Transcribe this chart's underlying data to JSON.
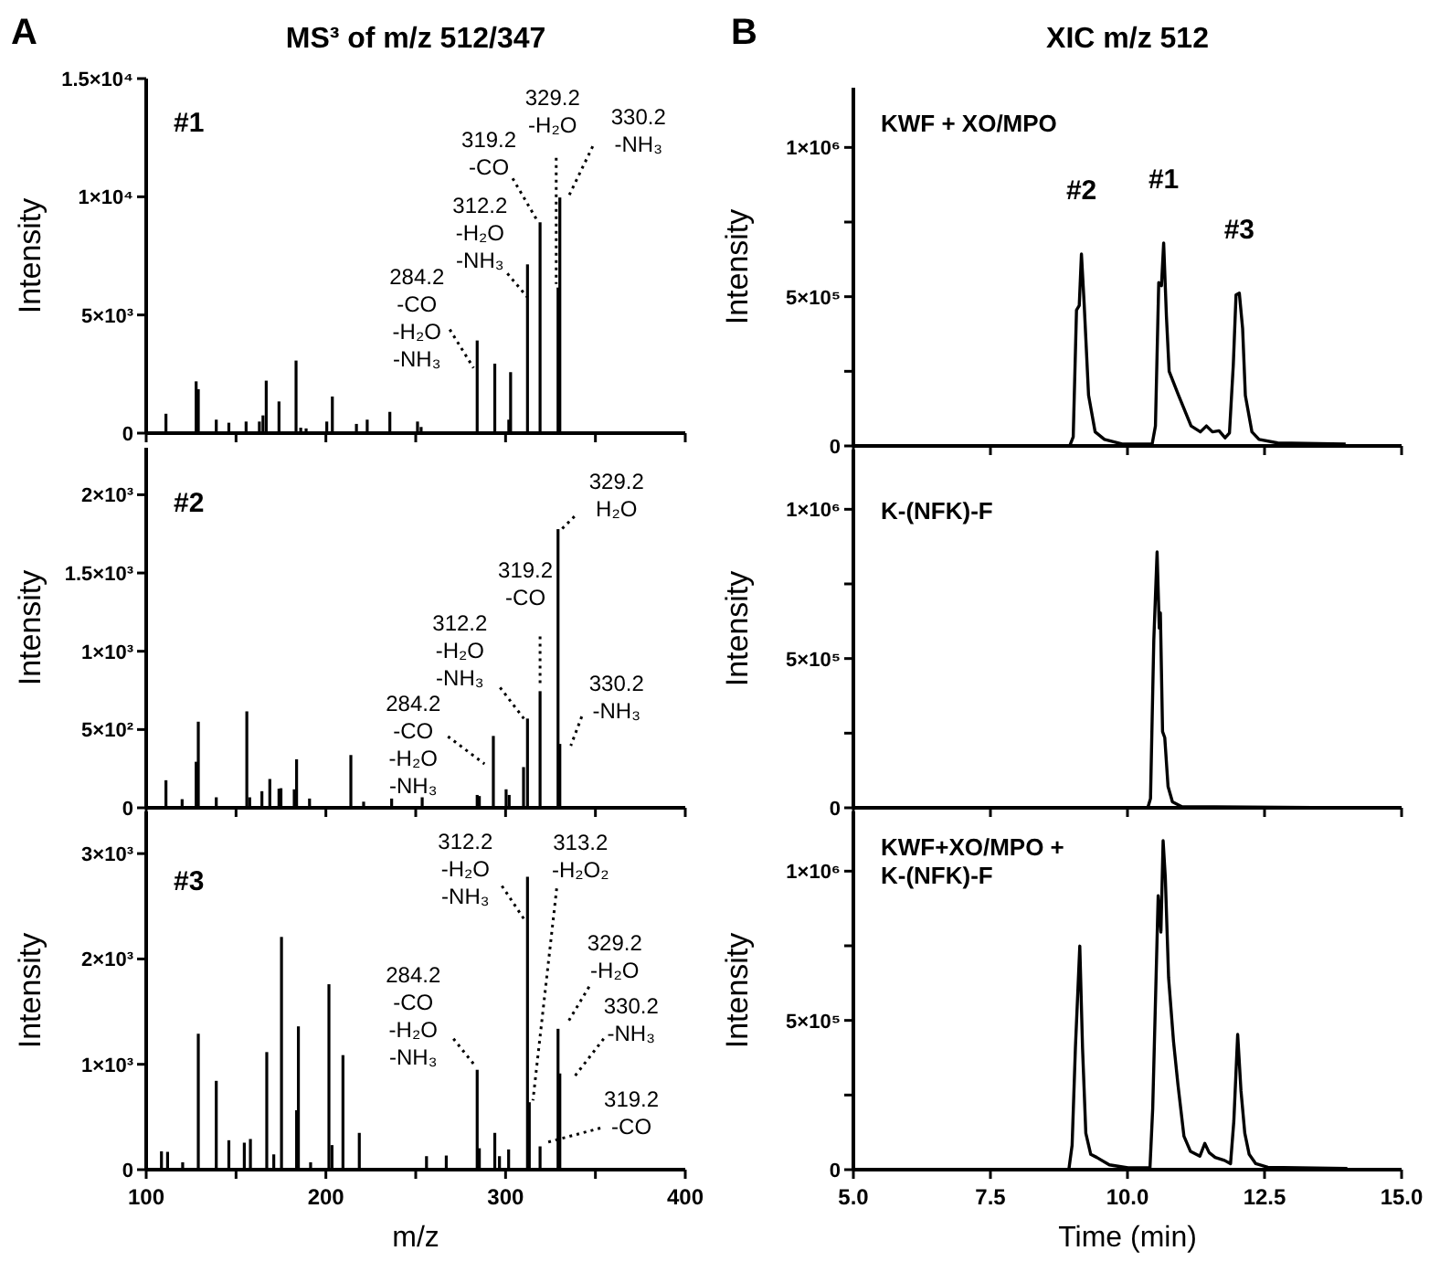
{
  "chart_data": [
    {
      "type": "bar",
      "title": "MS³ of m/z 512/347",
      "ylabel": "Intensity",
      "color": "#000000",
      "tick_labels": "y",
      "x": [
        111,
        127.8,
        129,
        139,
        146,
        155.6,
        163,
        165,
        166.8,
        173.9,
        183.4,
        186,
        189,
        200.5,
        203.6,
        217,
        223,
        235.6,
        251,
        253,
        284.2,
        294,
        301.8,
        302.8,
        312.2,
        319.2,
        329.2,
        330.2
      ],
      "values": [
        820,
        2190,
        1860,
        570,
        440,
        490,
        490,
        750,
        2220,
        1340,
        3070,
        230,
        200,
        490,
        1550,
        390,
        570,
        900,
        490,
        260,
        3920,
        2940,
        570,
        2580,
        7140,
        8920,
        6160,
        9970
      ],
      "xlim": [
        100,
        400
      ],
      "xticks": [
        {
          "value": 100,
          "label": null
        },
        {
          "value": 150,
          "label": null
        },
        {
          "value": 200,
          "label": null
        },
        {
          "value": 250,
          "label": null
        },
        {
          "value": 300,
          "label": null
        },
        {
          "value": 350,
          "label": null
        },
        {
          "value": 400,
          "label": null
        }
      ],
      "ylim": [
        0,
        15000
      ],
      "yticks": [
        {
          "value": 0,
          "label": "0"
        },
        {
          "value": 5000,
          "label": "5×10³"
        },
        {
          "value": 10000,
          "label": "1×10⁴"
        },
        {
          "value": 15000,
          "label": "1.5×10⁴"
        }
      ],
      "annotations": [
        "A",
        "#1",
        {
          "text": "284.2\n-CO\n-H₂O\n-NH₃",
          "x": 284.2,
          "y": 3920
        },
        {
          "text": "312.2\n-H₂O\n-NH₃",
          "x": 312.2,
          "y": 7140
        },
        {
          "text": "319.2\n-CO",
          "x": 319.2,
          "y": 8920
        },
        {
          "text": "329.2\n-H₂O",
          "x": 329.2,
          "y": 6160
        },
        {
          "text": "330.2\n-NH₃",
          "x": 330.2,
          "y": 9970
        }
      ]
    },
    {
      "type": "bar",
      "ylabel": "Intensity",
      "color": "#000000",
      "tick_labels": "y",
      "x": [
        111,
        120,
        127.8,
        129,
        139,
        156,
        157.6,
        164.4,
        168.8,
        173.9,
        175,
        182.4,
        183.7,
        190.9,
        213.9,
        221,
        236.6,
        253.6,
        284.2,
        285.4,
        293.2,
        300.3,
        302,
        310,
        312.2,
        319.2,
        329.2,
        330.2
      ],
      "values": [
        176,
        55,
        294,
        550,
        67,
        616,
        67,
        106,
        184,
        122,
        125,
        118,
        310,
        59,
        337,
        39,
        59,
        67,
        82,
        75,
        459,
        118,
        82,
        260,
        570,
        745,
        1780,
        408
      ],
      "xlim": [
        100,
        400
      ],
      "xticks": [
        {
          "value": 100,
          "label": null
        },
        {
          "value": 150,
          "label": null
        },
        {
          "value": 200,
          "label": null
        },
        {
          "value": 250,
          "label": null
        },
        {
          "value": 300,
          "label": null
        },
        {
          "value": 350,
          "label": null
        },
        {
          "value": 400,
          "label": null
        }
      ],
      "ylim": [
        0,
        2300
      ],
      "yticks": [
        {
          "value": 0,
          "label": "0"
        },
        {
          "value": 500,
          "label": "5×10²"
        },
        {
          "value": 1000,
          "label": "1×10³"
        },
        {
          "value": 1500,
          "label": "1.5×10³"
        },
        {
          "value": 2000,
          "label": "2×10³"
        }
      ],
      "annotations": [
        "#2",
        {
          "text": "284.2\n-CO\n-H₂O\n-NH₃",
          "x": 284.2,
          "y": 82
        },
        {
          "text": "312.2\n-H₂O\n-NH₃",
          "x": 312.2,
          "y": 570
        },
        {
          "text": "319.2\n-CO",
          "x": 319.2,
          "y": 745
        },
        {
          "text": "329.2\nH₂O",
          "x": 329.2,
          "y": 1780
        },
        {
          "text": "330.2\n-NH₃",
          "x": 330.2,
          "y": 408
        }
      ]
    },
    {
      "type": "bar",
      "ylabel": "Intensity",
      "xlabel": "m/z",
      "color": "#000000",
      "x": [
        108.5,
        111.9,
        120.3,
        129,
        139,
        146,
        154.6,
        158,
        167.1,
        171,
        175.3,
        183.7,
        184.7,
        191.5,
        201.7,
        203.4,
        209.5,
        218.6,
        256,
        267,
        284.2,
        285.4,
        294,
        296.6,
        301.7,
        312.2,
        313.2,
        319.2,
        329.2,
        330.2
      ],
      "values": [
        174,
        169,
        70,
        1290,
        843,
        279,
        256,
        291,
        1116,
        145,
        2209,
        564,
        1360,
        70,
        1760,
        233,
        1087,
        349,
        128,
        134,
        948,
        203,
        349,
        128,
        192,
        2780,
        640,
        221,
        1337,
        913
      ],
      "xlim": [
        100,
        400
      ],
      "xticks": [
        100,
        {
          "value": 150,
          "label": null
        },
        200,
        {
          "value": 250,
          "label": null
        },
        300,
        {
          "value": 350,
          "label": null
        },
        400
      ],
      "ylim": [
        0,
        3400
      ],
      "yticks": [
        {
          "value": 0,
          "label": "0"
        },
        {
          "value": 1000,
          "label": "1×10³"
        },
        {
          "value": 2000,
          "label": "2×10³"
        },
        {
          "value": 3000,
          "label": "3×10³"
        }
      ],
      "annotations": [
        "#3",
        {
          "text": "284.2\n-CO\n-H₂O\n-NH₃",
          "x": 284.2,
          "y": 948
        },
        {
          "text": "312.2\n-H₂O\n-NH₃",
          "x": 312.2,
          "y": 2780
        },
        {
          "text": "313.2\n-H₂O₂",
          "x": 313.2,
          "y": 640
        },
        {
          "text": "329.2\n-H₂O",
          "x": 329.2,
          "y": 1337
        },
        {
          "text": "330.2\n-NH₃",
          "x": 330.2,
          "y": 913
        },
        {
          "text": "319.2\n-CO",
          "x": 319.2,
          "y": 221
        }
      ]
    },
    {
      "type": "line",
      "title": "XIC m/z 512",
      "ylabel": "Intensity",
      "color": "#000000",
      "tick_labels": "y",
      "x": [
        5.0,
        8.95,
        9.01,
        9.07,
        9.12,
        9.16,
        9.21,
        9.29,
        9.41,
        9.58,
        9.92,
        10.45,
        10.51,
        10.57,
        10.62,
        10.66,
        10.71,
        10.76,
        10.93,
        11.16,
        11.33,
        11.44,
        11.55,
        11.67,
        11.78,
        11.86,
        11.93,
        11.98,
        12.04,
        12.1,
        12.15,
        12.27,
        12.4,
        12.74,
        13.98
      ],
      "values": [
        0,
        2000,
        30000,
        455000,
        470000,
        643000,
        475000,
        170000,
        47000,
        22000,
        6000,
        6000,
        67000,
        547000,
        537000,
        680000,
        435000,
        250000,
        170000,
        67000,
        47000,
        67000,
        47000,
        51000,
        27000,
        43000,
        271000,
        506000,
        512000,
        394000,
        169000,
        47000,
        22000,
        10000,
        6000
      ],
      "xlim": [
        5,
        15
      ],
      "xticks": [
        {
          "value": 5,
          "label": null
        },
        {
          "value": 7.5,
          "label": null
        },
        {
          "value": 10,
          "label": null
        },
        {
          "value": 12.5,
          "label": null
        },
        {
          "value": 15,
          "label": null
        }
      ],
      "ylim": [
        0,
        1200000
      ],
      "yticks": [
        {
          "value": 0,
          "label": "0"
        },
        {
          "value": 250000,
          "label": null
        },
        {
          "value": 500000,
          "label": "5×10⁵"
        },
        {
          "value": 750000,
          "label": null
        },
        {
          "value": 1000000,
          "label": "1×10⁶"
        }
      ],
      "annotations": [
        "B",
        "KWF + XO/MPO",
        {
          "text": "#2",
          "x": 9.16,
          "y": 643000
        },
        {
          "text": "#1",
          "x": 10.66,
          "y": 680000
        },
        {
          "text": "#3",
          "x": 12.04,
          "y": 512000
        }
      ]
    },
    {
      "type": "line",
      "ylabel": "Intensity",
      "color": "#000000",
      "tick_labels": "y",
      "x": [
        5.0,
        10.37,
        10.42,
        10.48,
        10.54,
        10.58,
        10.6,
        10.64,
        10.68,
        10.74,
        10.82,
        10.99,
        13.98
      ],
      "values": [
        0,
        0,
        31000,
        561000,
        857000,
        602000,
        653000,
        255000,
        235000,
        71000,
        20000,
        4000,
        0
      ],
      "xlim": [
        5,
        15
      ],
      "xticks": [
        {
          "value": 5,
          "label": null
        },
        {
          "value": 7.5,
          "label": null
        },
        {
          "value": 10,
          "label": null
        },
        {
          "value": 12.5,
          "label": null
        },
        {
          "value": 15,
          "label": null
        }
      ],
      "ylim": [
        0,
        1200000
      ],
      "yticks": [
        {
          "value": 0,
          "label": "0"
        },
        {
          "value": 250000,
          "label": null
        },
        {
          "value": 500000,
          "label": "5×10⁵"
        },
        {
          "value": 750000,
          "label": null
        },
        {
          "value": 1000000,
          "label": "1×10⁶"
        }
      ],
      "annotations": [
        "K-(NFK)-F"
      ]
    },
    {
      "type": "line",
      "ylabel": "Intensity",
      "xlabel": "Time (min)",
      "color": "#000000",
      "x": [
        5.0,
        8.93,
        8.99,
        9.05,
        9.13,
        9.18,
        9.24,
        9.33,
        9.44,
        9.67,
        10.01,
        10.41,
        10.46,
        10.56,
        10.61,
        10.65,
        10.69,
        10.75,
        10.84,
        10.92,
        11.03,
        11.15,
        11.32,
        11.41,
        11.49,
        11.6,
        11.77,
        11.88,
        11.94,
        12.01,
        12.07,
        12.14,
        12.22,
        12.34,
        12.56,
        14.01
      ],
      "values": [
        0,
        0,
        82000,
        408000,
        749000,
        408000,
        122000,
        51000,
        41000,
        16000,
        6000,
        6000,
        204000,
        918000,
        796000,
        1102000,
        980000,
        643000,
        429000,
        286000,
        112000,
        61000,
        45000,
        88000,
        57000,
        41000,
        31000,
        20000,
        163000,
        453000,
        265000,
        122000,
        51000,
        20000,
        8000,
        4000
      ],
      "xlim": [
        5,
        15
      ],
      "xticks": [
        {
          "value": 5,
          "label": "5.0"
        },
        7.5,
        {
          "value": 10,
          "label": "10.0"
        },
        12.5,
        {
          "value": 15,
          "label": "15.0"
        }
      ],
      "ylim": [
        0,
        1200000
      ],
      "yticks": [
        {
          "value": 0,
          "label": "0"
        },
        {
          "value": 250000,
          "label": null
        },
        {
          "value": 500000,
          "label": "5×10⁵"
        },
        {
          "value": 750000,
          "label": null
        },
        {
          "value": 1000000,
          "label": "1×10⁶"
        }
      ],
      "annotations": [
        "KWF+XO/MPO +\nK-(NFK)-F"
      ]
    }
  ]
}
